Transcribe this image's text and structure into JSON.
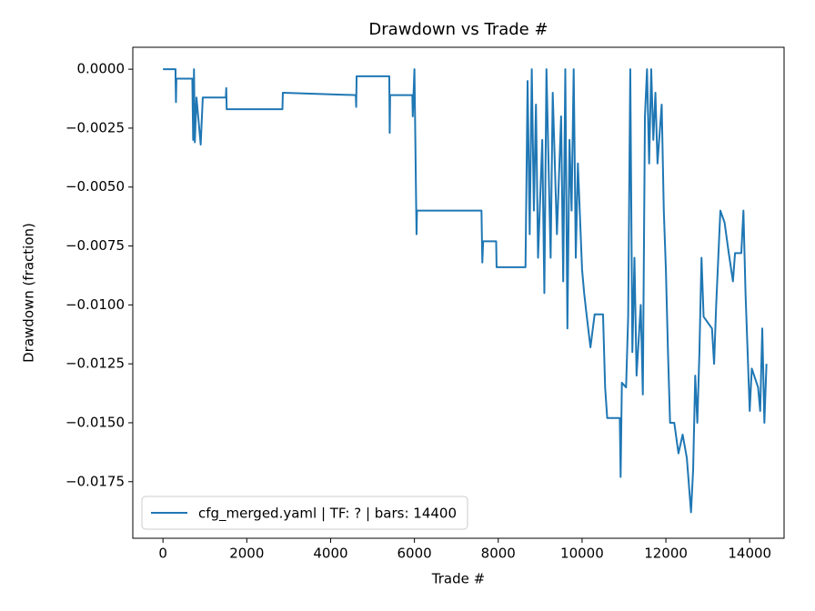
{
  "chart_data": {
    "type": "line",
    "title": "Drawdown vs Trade #",
    "xlabel": "Trade #",
    "ylabel": "Drawdown (fraction)",
    "xlim": [
      -720,
      14820
    ],
    "ylim": [
      -0.0199,
      0.00093
    ],
    "xticks": [
      0,
      2000,
      4000,
      6000,
      8000,
      10000,
      12000,
      14000
    ],
    "yticks": [
      {
        "value": 0,
        "label": "0.0000"
      },
      {
        "value": -0.0025,
        "label": "−0.0025"
      },
      {
        "value": -0.005,
        "label": "−0.0050"
      },
      {
        "value": -0.0075,
        "label": "−0.0075"
      },
      {
        "value": -0.01,
        "label": "−0.0100"
      },
      {
        "value": -0.0125,
        "label": "−0.0125"
      },
      {
        "value": -0.015,
        "label": "−0.0150"
      },
      {
        "value": -0.0175,
        "label": "−0.0175"
      }
    ],
    "legend": "lower left",
    "x": [
      0,
      300,
      300,
      310,
      320,
      700,
      720,
      740,
      760,
      800,
      900,
      950,
      1500,
      1510,
      1520,
      2850,
      2860,
      4600,
      4610,
      4620,
      5400,
      5410,
      5420,
      5950,
      5960,
      6000,
      6050,
      6060,
      7600,
      7620,
      7640,
      7950,
      7960,
      8650,
      8700,
      8750,
      8800,
      8850,
      8900,
      8950,
      9050,
      9100,
      9150,
      9250,
      9300,
      9400,
      9500,
      9550,
      9600,
      9650,
      9700,
      9750,
      9800,
      9850,
      9900,
      10000,
      10050,
      10100,
      10200,
      10300,
      10500,
      10550,
      10600,
      10900,
      10920,
      10950,
      11050,
      11100,
      11150,
      11200,
      11250,
      11300,
      11400,
      11450,
      11500,
      11550,
      11600,
      11650,
      11700,
      11750,
      11800,
      11900,
      11950,
      12000,
      12050,
      12100,
      12200,
      12300,
      12400,
      12500,
      12600,
      12650,
      12700,
      12750,
      12800,
      12850,
      12900,
      13100,
      13150,
      13200,
      13300,
      13400,
      13500,
      13600,
      13650,
      13800,
      13850,
      13900,
      13950,
      14000,
      14050,
      14200,
      14250,
      14300,
      14350,
      14400
    ],
    "series": [
      {
        "name": "cfg_merged.yaml | TF: ? | bars: 14400",
        "color": "#1f77b4",
        "values": [
          0,
          0,
          -0.0004,
          -0.0014,
          -0.0004,
          -0.0004,
          -0.003,
          0,
          -0.0031,
          -0.0012,
          -0.0032,
          -0.0012,
          -0.0012,
          -0.0008,
          -0.0017,
          -0.0017,
          -0.001,
          -0.0011,
          -0.0016,
          -0.0003,
          -0.0003,
          -0.0027,
          -0.0011,
          -0.0011,
          -0.002,
          0,
          -0.007,
          -0.006,
          -0.006,
          -0.0082,
          -0.0073,
          -0.0073,
          -0.0084,
          -0.0084,
          -0.0005,
          -0.007,
          0,
          -0.006,
          -0.0015,
          -0.008,
          -0.003,
          -0.0095,
          0,
          -0.008,
          -0.001,
          -0.007,
          -0.002,
          -0.009,
          0,
          -0.011,
          -0.003,
          -0.006,
          0,
          -0.008,
          -0.004,
          -0.0085,
          -0.0095,
          -0.0103,
          -0.0118,
          -0.0104,
          -0.0104,
          -0.0135,
          -0.0148,
          -0.0148,
          -0.0173,
          -0.0133,
          -0.0135,
          -0.0105,
          0,
          -0.012,
          -0.008,
          -0.013,
          -0.01,
          -0.0138,
          -0.002,
          0,
          -0.004,
          0,
          -0.003,
          -0.001,
          -0.004,
          -0.0015,
          -0.006,
          -0.0085,
          -0.012,
          -0.015,
          -0.015,
          -0.0163,
          -0.0155,
          -0.0165,
          -0.0188,
          -0.017,
          -0.013,
          -0.015,
          -0.012,
          -0.008,
          -0.0105,
          -0.011,
          -0.0125,
          -0.01,
          -0.006,
          -0.0065,
          -0.0078,
          -0.009,
          -0.0078,
          -0.0078,
          -0.006,
          -0.0095,
          -0.012,
          -0.0145,
          -0.0127,
          -0.0135,
          -0.0145,
          -0.011,
          -0.015,
          -0.0125
        ]
      }
    ]
  }
}
